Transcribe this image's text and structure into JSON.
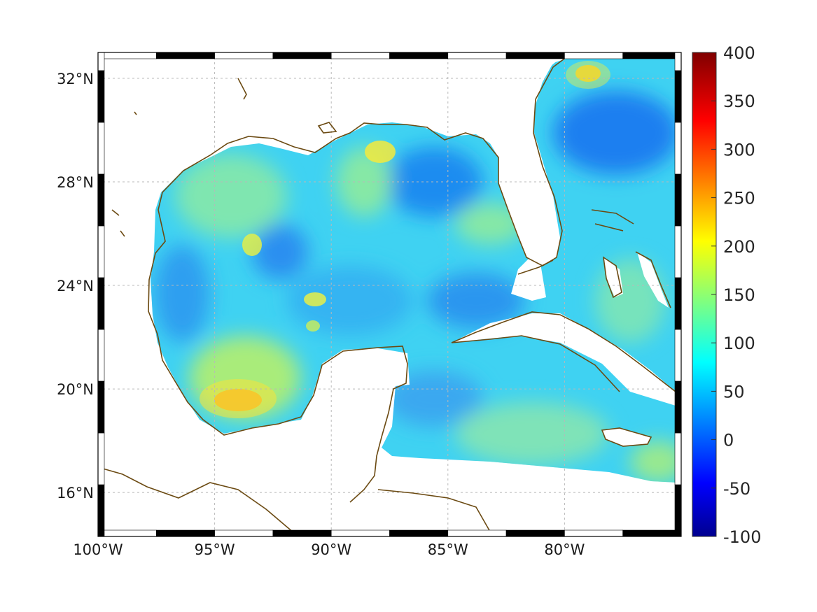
{
  "map": {
    "x_ticks": [
      "100°W",
      "95°W",
      "90°W",
      "85°W",
      "80°W"
    ],
    "y_ticks": [
      "32°N",
      "28°N",
      "24°N",
      "20°N",
      "16°N"
    ],
    "lon_ticks": [
      -100,
      -95,
      -90,
      -85,
      -80
    ],
    "lat_ticks": [
      32,
      28,
      24,
      20,
      16
    ],
    "lon_range": [
      -100,
      -75
    ],
    "lat_range": [
      14.3,
      33
    ],
    "grid": true,
    "coastline_color": "#6b4a12"
  },
  "colorbar": {
    "ticks": [
      "400",
      "350",
      "300",
      "250",
      "200",
      "150",
      "100",
      "50",
      "0",
      "-50",
      "-100"
    ],
    "range": [
      -100,
      400
    ],
    "colormap": "jet",
    "placement": "right"
  }
}
